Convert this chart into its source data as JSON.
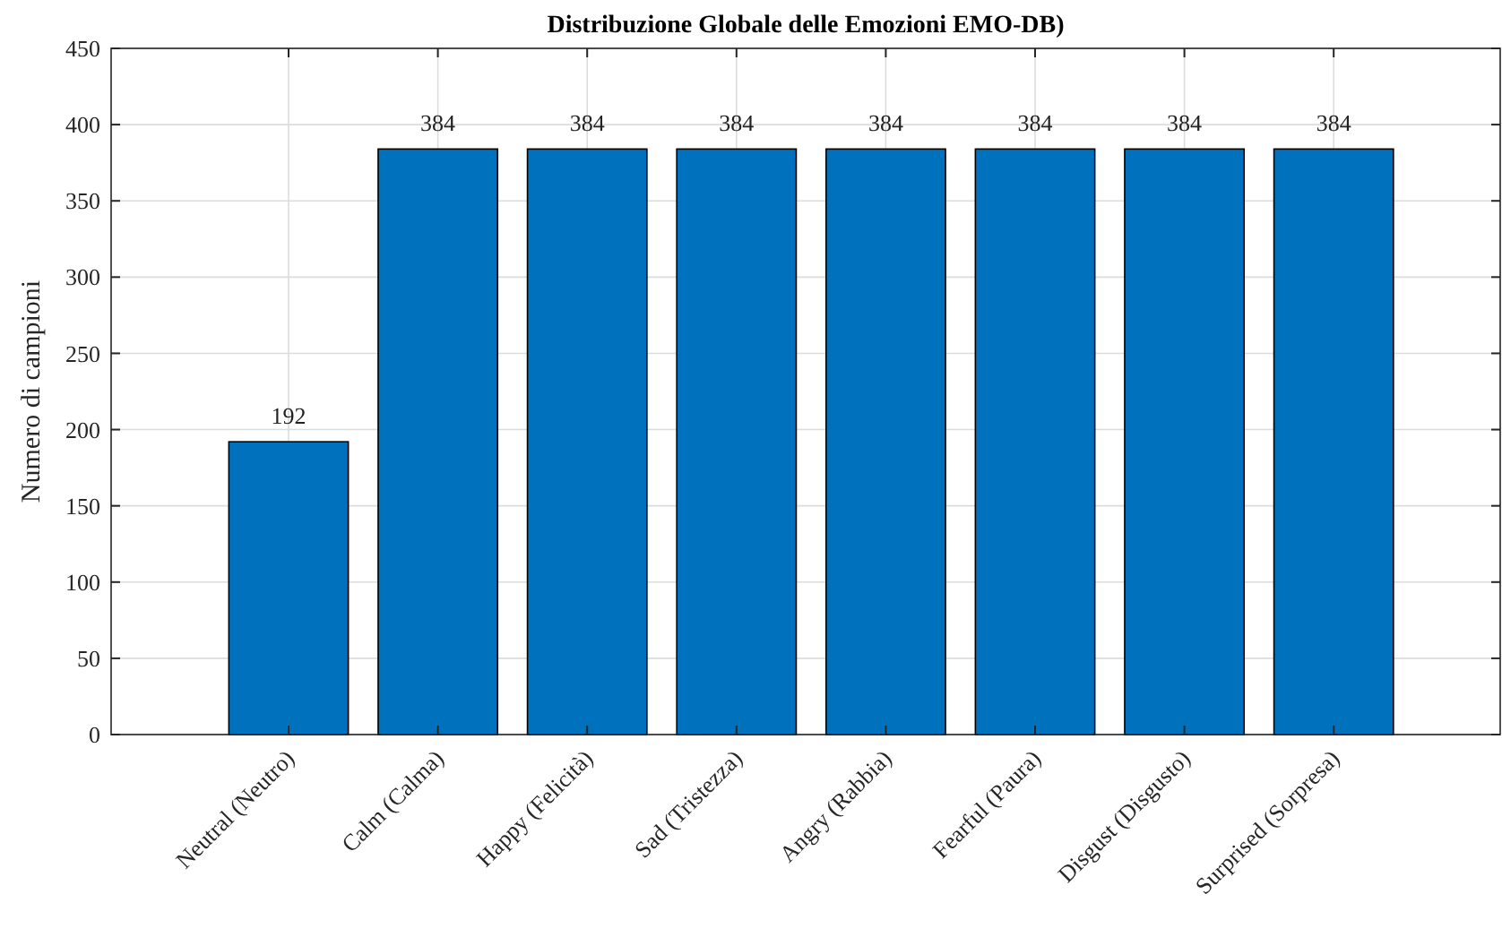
{
  "chart_data": {
    "type": "bar",
    "title": "Distribuzione Globale delle Emozioni EMO-DB)",
    "ylabel": "Numero di campioni",
    "categories": [
      "Neutral (Neutro)",
      "Calm (Calma)",
      "Happy (Felicità)",
      "Sad (Tristezza)",
      "Angry (Rabbia)",
      "Fearful (Paura)",
      "Disgust (Disgusto)",
      "Surprised (Sorpresa)"
    ],
    "values": [
      192,
      384,
      384,
      384,
      384,
      384,
      384,
      384
    ],
    "color": "#0072bd",
    "ylim": [
      0,
      450
    ],
    "yticks": [
      0,
      50,
      100,
      150,
      200,
      250,
      300,
      350,
      400,
      450
    ],
    "grid": true,
    "data_labels": true
  }
}
